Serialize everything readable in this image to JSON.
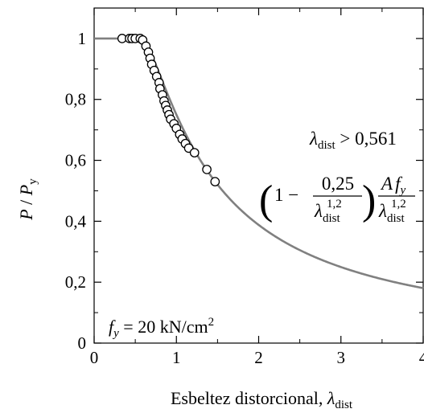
{
  "chart_data": {
    "type": "scatter",
    "xlabel_text": "Esbeltez distorcional, ",
    "xlabel_symbol": "λ",
    "xlabel_sub": "dist",
    "ylabel_p": "P",
    "ylabel_slash": " / ",
    "ylabel_py": "P",
    "ylabel_py_sub": "y",
    "xlim": [
      0,
      4
    ],
    "ylim": [
      0,
      1.1
    ],
    "xticks": [
      {
        "value": 0,
        "label": "0"
      },
      {
        "value": 1,
        "label": "1"
      },
      {
        "value": 2,
        "label": "2"
      },
      {
        "value": 3,
        "label": "3"
      },
      {
        "value": 4,
        "label": "4"
      }
    ],
    "yticks": [
      {
        "value": 0,
        "label": "0"
      },
      {
        "value": 0.2,
        "label": "0,2"
      },
      {
        "value": 0.4,
        "label": "0,4"
      },
      {
        "value": 0.6,
        "label": "0,6"
      },
      {
        "value": 0.8,
        "label": "0,8"
      },
      {
        "value": 1.0,
        "label": "1"
      }
    ],
    "curve": {
      "color": "#808080",
      "plateau_value": 1.0,
      "breakpoint": 0.561,
      "coefficient": 0.25,
      "exponent": 1.2
    },
    "points": [
      {
        "x": 0.34,
        "y": 1.0
      },
      {
        "x": 0.43,
        "y": 1.0
      },
      {
        "x": 0.46,
        "y": 1.0
      },
      {
        "x": 0.5,
        "y": 1.0
      },
      {
        "x": 0.56,
        "y": 1.0
      },
      {
        "x": 0.59,
        "y": 0.995
      },
      {
        "x": 0.63,
        "y": 0.975
      },
      {
        "x": 0.66,
        "y": 0.955
      },
      {
        "x": 0.68,
        "y": 0.935
      },
      {
        "x": 0.7,
        "y": 0.915
      },
      {
        "x": 0.73,
        "y": 0.895
      },
      {
        "x": 0.76,
        "y": 0.875
      },
      {
        "x": 0.79,
        "y": 0.855
      },
      {
        "x": 0.8,
        "y": 0.835
      },
      {
        "x": 0.83,
        "y": 0.815
      },
      {
        "x": 0.85,
        "y": 0.795
      },
      {
        "x": 0.87,
        "y": 0.78
      },
      {
        "x": 0.89,
        "y": 0.765
      },
      {
        "x": 0.91,
        "y": 0.75
      },
      {
        "x": 0.93,
        "y": 0.735
      },
      {
        "x": 0.97,
        "y": 0.72
      },
      {
        "x": 1.0,
        "y": 0.705
      },
      {
        "x": 1.04,
        "y": 0.685
      },
      {
        "x": 1.07,
        "y": 0.67
      },
      {
        "x": 1.11,
        "y": 0.655
      },
      {
        "x": 1.15,
        "y": 0.64
      },
      {
        "x": 1.22,
        "y": 0.625
      },
      {
        "x": 1.37,
        "y": 0.57
      },
      {
        "x": 1.47,
        "y": 0.53
      }
    ],
    "annotations": {
      "condition_lambda": "λ",
      "condition_sub": "dist",
      "condition_rest": " > 0,561",
      "formula_one_minus": "1 −",
      "formula_numerator": "0,25",
      "formula_den_lambda": "λ",
      "formula_den_sub": "dist",
      "formula_den_sup": "1,2",
      "formula_numerator2_a": "A",
      "formula_numerator2_f": "f",
      "formula_numerator2_sub": "y",
      "fy_label_f": "f",
      "fy_label_sub": "y",
      "fy_label_rest": " = 20 kN/cm",
      "fy_label_sup": "2"
    }
  }
}
